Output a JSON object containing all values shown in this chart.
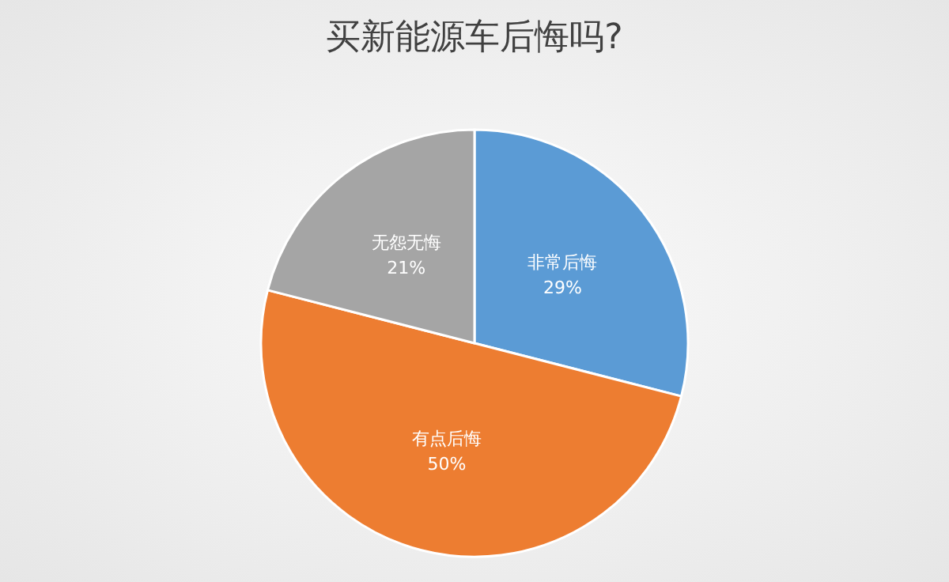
{
  "chart_data": {
    "type": "pie",
    "title": "买新能源车后悔吗?",
    "categories": [
      "非常后悔",
      "有点后悔",
      "无怨无悔"
    ],
    "values": [
      29,
      50,
      21
    ],
    "colors": [
      "#5b9bd5",
      "#ed7d31",
      "#a5a5a5"
    ],
    "value_labels": [
      "29%",
      "50%",
      "21%"
    ],
    "legend": false
  }
}
